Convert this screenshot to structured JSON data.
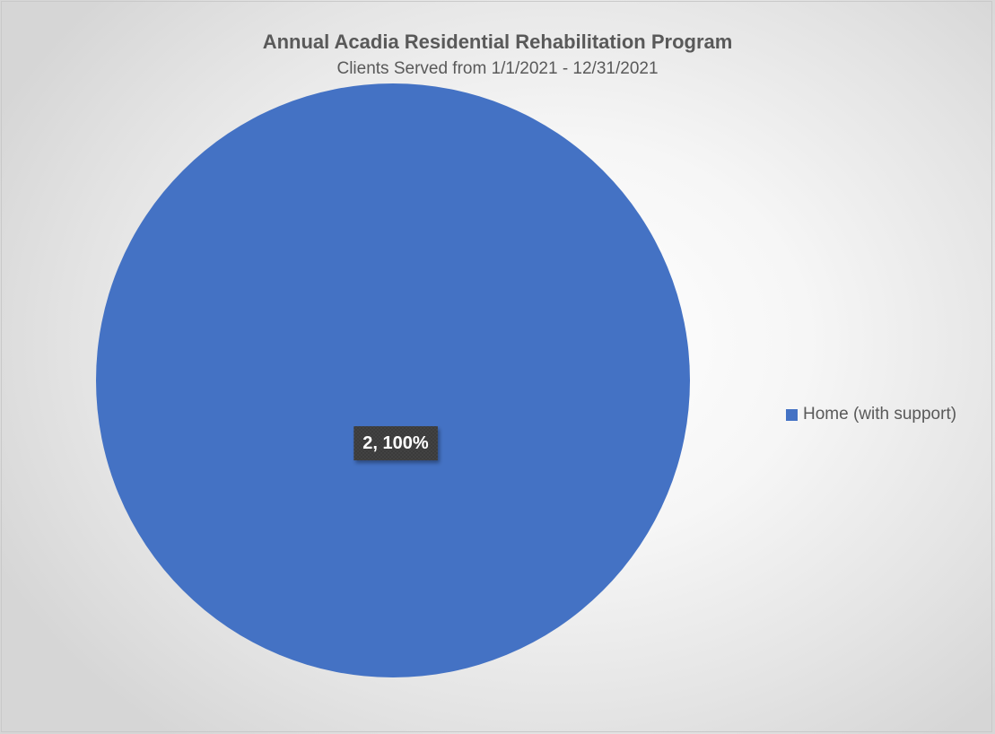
{
  "chart_data": {
    "type": "pie",
    "title": "Annual Acadia Residential Rehabilitation Program",
    "subtitle": "Clients Served from 1/1/2021 - 12/31/2021",
    "slices": [
      {
        "label": "Home (with support)",
        "value": 2,
        "percent": 100,
        "data_label": "2, 100%",
        "color": "#4472c4"
      }
    ],
    "legend": {
      "placement": "right",
      "entries": [
        "Home (with support)"
      ]
    }
  }
}
